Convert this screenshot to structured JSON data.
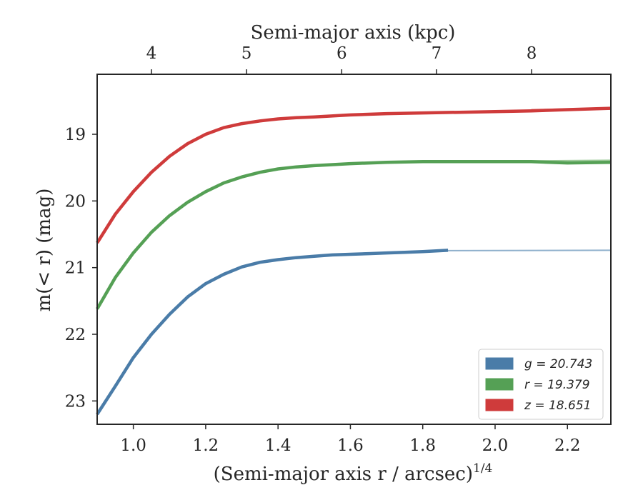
{
  "chart_data": {
    "type": "line",
    "xlabel": "(Semi-major axis r / arcsec)",
    "xlabel_exponent": "1/4",
    "ylabel": "m(< r) (mag)",
    "top_xlabel": "Semi-major axis (kpc)",
    "xlim": [
      0.9,
      2.32
    ],
    "ylim": [
      23.35,
      18.1
    ],
    "y_inverted": true,
    "x_ticks": [
      1.0,
      1.2,
      1.4,
      1.6,
      1.8,
      2.0,
      2.2
    ],
    "x_tick_labels": [
      "1.0",
      "1.2",
      "1.4",
      "1.6",
      "1.8",
      "2.0",
      "2.2"
    ],
    "y_ticks": [
      19,
      20,
      21,
      22,
      23
    ],
    "y_tick_labels": [
      "19",
      "20",
      "21",
      "22",
      "23"
    ],
    "top_ticks": [
      {
        "label": "4",
        "x": 1.05
      },
      {
        "label": "5",
        "x": 1.313
      },
      {
        "label": "6",
        "x": 1.576
      },
      {
        "label": "7",
        "x": 1.838
      },
      {
        "label": "8",
        "x": 2.101
      }
    ],
    "legend_position": "lower right",
    "grid": false,
    "series": [
      {
        "name": "g = 20.743",
        "legend_label": "g = 20.743",
        "color": "#4a7ca8",
        "extrapolation_color": "#8fb0cc",
        "x": [
          0.9,
          0.95,
          1.0,
          1.05,
          1.1,
          1.15,
          1.2,
          1.25,
          1.3,
          1.35,
          1.4,
          1.45,
          1.5,
          1.55,
          1.6,
          1.65,
          1.7,
          1.75,
          1.8,
          1.87
        ],
        "y": [
          23.2,
          22.78,
          22.35,
          22.0,
          21.7,
          21.44,
          21.24,
          21.1,
          20.99,
          20.92,
          20.88,
          20.85,
          20.83,
          20.81,
          20.8,
          20.79,
          20.78,
          20.77,
          20.76,
          20.74
        ],
        "extrapolation": {
          "x": [
            1.87,
            2.32
          ],
          "y": [
            20.745,
            20.74
          ]
        }
      },
      {
        "name": "r = 19.379",
        "legend_label": "r = 19.379",
        "color": "#55a055",
        "extrapolation_color": "#a0cc9c",
        "x": [
          0.9,
          0.95,
          1.0,
          1.05,
          1.1,
          1.15,
          1.2,
          1.25,
          1.3,
          1.35,
          1.4,
          1.45,
          1.5,
          1.6,
          1.7,
          1.8,
          1.9,
          2.0,
          2.1,
          2.2,
          2.32
        ],
        "y": [
          21.62,
          21.15,
          20.78,
          20.47,
          20.22,
          20.02,
          19.86,
          19.73,
          19.64,
          19.57,
          19.52,
          19.49,
          19.47,
          19.44,
          19.42,
          19.41,
          19.41,
          19.41,
          19.41,
          19.43,
          19.42
        ],
        "extrapolation": {
          "x": [
            2.1,
            2.32
          ],
          "y": [
            19.4,
            19.39
          ]
        }
      },
      {
        "name": "z = 18.651",
        "legend_label": "z = 18.651",
        "color": "#cf3b3b",
        "extrapolation_color": "#e89090",
        "x": [
          0.9,
          0.95,
          1.0,
          1.05,
          1.1,
          1.15,
          1.2,
          1.25,
          1.3,
          1.35,
          1.4,
          1.45,
          1.5,
          1.6,
          1.7,
          1.8,
          1.9,
          2.0,
          2.1,
          2.2,
          2.32
        ],
        "y": [
          20.63,
          20.2,
          19.86,
          19.57,
          19.33,
          19.14,
          19.0,
          18.9,
          18.84,
          18.8,
          18.77,
          18.75,
          18.74,
          18.71,
          18.69,
          18.68,
          18.67,
          18.66,
          18.65,
          18.63,
          18.61
        ],
        "extrapolation": {
          "x": [
            2.1,
            2.32
          ],
          "y": [
            18.63,
            18.61
          ]
        }
      }
    ]
  }
}
